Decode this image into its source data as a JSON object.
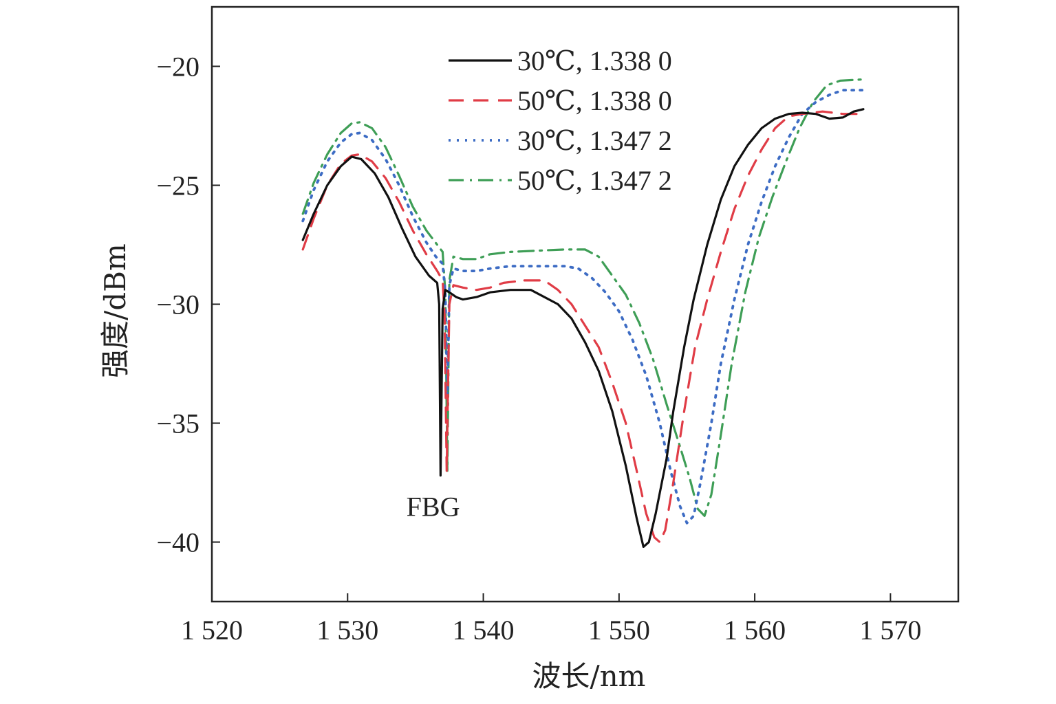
{
  "chart_data": {
    "type": "line",
    "xlabel": "波长/nm",
    "ylabel": "强度/dBm",
    "xlim": [
      1520,
      1575
    ],
    "ylim": [
      -42.5,
      -17.5
    ],
    "xticks": [
      1520,
      1530,
      1540,
      1550,
      1560,
      1570
    ],
    "xtick_labels": [
      "1 520",
      "1 530",
      "1 540",
      "1 550",
      "1 560",
      "1 570"
    ],
    "yticks": [
      -20,
      -25,
      -30,
      -35,
      -40
    ],
    "ytick_labels": [
      "−20",
      "−25",
      "−30",
      "−35",
      "−40"
    ],
    "grid": false,
    "legend_position": "top-center",
    "annotations": [
      {
        "text": "FBG",
        "x": 1536.3,
        "y": -38.5
      }
    ],
    "series": [
      {
        "name": "30℃, 1.338 0",
        "color": "#111111",
        "dash": "solid",
        "points": [
          [
            1526.7,
            -27.3
          ],
          [
            1527.5,
            -26.2
          ],
          [
            1528.5,
            -25.0
          ],
          [
            1529.5,
            -24.2
          ],
          [
            1530.3,
            -23.8
          ],
          [
            1531.0,
            -23.9
          ],
          [
            1532.0,
            -24.5
          ],
          [
            1533.0,
            -25.5
          ],
          [
            1534.0,
            -26.8
          ],
          [
            1535.0,
            -28.0
          ],
          [
            1536.0,
            -28.8
          ],
          [
            1536.6,
            -29.1
          ],
          [
            1536.75,
            -30.0
          ],
          [
            1536.85,
            -37.2
          ],
          [
            1537.0,
            -30.2
          ],
          [
            1537.2,
            -29.4
          ],
          [
            1537.5,
            -29.5
          ],
          [
            1538.0,
            -29.7
          ],
          [
            1538.5,
            -29.8
          ],
          [
            1539.5,
            -29.7
          ],
          [
            1540.5,
            -29.5
          ],
          [
            1542.0,
            -29.4
          ],
          [
            1543.5,
            -29.4
          ],
          [
            1544.5,
            -29.7
          ],
          [
            1545.5,
            -30.0
          ],
          [
            1546.5,
            -30.6
          ],
          [
            1547.5,
            -31.6
          ],
          [
            1548.5,
            -32.8
          ],
          [
            1549.5,
            -34.5
          ],
          [
            1550.5,
            -36.8
          ],
          [
            1551.3,
            -39.0
          ],
          [
            1551.8,
            -40.2
          ],
          [
            1552.2,
            -40.0
          ],
          [
            1552.7,
            -38.8
          ],
          [
            1553.5,
            -36.5
          ],
          [
            1554.0,
            -34.5
          ],
          [
            1554.8,
            -31.8
          ],
          [
            1555.5,
            -29.8
          ],
          [
            1556.5,
            -27.5
          ],
          [
            1557.5,
            -25.6
          ],
          [
            1558.5,
            -24.2
          ],
          [
            1559.5,
            -23.3
          ],
          [
            1560.5,
            -22.6
          ],
          [
            1561.5,
            -22.2
          ],
          [
            1562.5,
            -22.0
          ],
          [
            1563.5,
            -21.95
          ],
          [
            1564.5,
            -22.0
          ],
          [
            1565.5,
            -22.2
          ],
          [
            1566.5,
            -22.15
          ],
          [
            1567.3,
            -21.9
          ],
          [
            1568.0,
            -21.8
          ]
        ]
      },
      {
        "name": "50℃, 1.338 0",
        "color": "#e03c46",
        "dash": "dashed",
        "points": [
          [
            1526.7,
            -27.7
          ],
          [
            1527.5,
            -26.4
          ],
          [
            1528.5,
            -25.0
          ],
          [
            1529.5,
            -24.1
          ],
          [
            1530.3,
            -23.75
          ],
          [
            1530.9,
            -23.7
          ],
          [
            1531.8,
            -24.0
          ],
          [
            1532.8,
            -24.7
          ],
          [
            1533.8,
            -25.7
          ],
          [
            1534.8,
            -26.9
          ],
          [
            1535.8,
            -27.9
          ],
          [
            1536.6,
            -28.6
          ],
          [
            1537.0,
            -29.0
          ],
          [
            1537.15,
            -30.5
          ],
          [
            1537.3,
            -37.0
          ],
          [
            1537.5,
            -30.0
          ],
          [
            1537.8,
            -29.2
          ],
          [
            1538.5,
            -29.3
          ],
          [
            1539.5,
            -29.4
          ],
          [
            1540.5,
            -29.3
          ],
          [
            1541.5,
            -29.1
          ],
          [
            1543.0,
            -29.0
          ],
          [
            1544.5,
            -29.0
          ],
          [
            1545.5,
            -29.4
          ],
          [
            1546.5,
            -30.0
          ],
          [
            1547.5,
            -30.9
          ],
          [
            1548.5,
            -31.8
          ],
          [
            1549.5,
            -33.3
          ],
          [
            1550.5,
            -35.0
          ],
          [
            1551.3,
            -37.0
          ],
          [
            1552.0,
            -38.8
          ],
          [
            1552.6,
            -39.8
          ],
          [
            1553.0,
            -40.0
          ],
          [
            1553.4,
            -39.5
          ],
          [
            1554.0,
            -37.5
          ],
          [
            1554.8,
            -34.5
          ],
          [
            1555.6,
            -31.8
          ],
          [
            1556.5,
            -29.8
          ],
          [
            1557.5,
            -27.8
          ],
          [
            1558.5,
            -26.0
          ],
          [
            1559.5,
            -24.6
          ],
          [
            1560.5,
            -23.5
          ],
          [
            1561.5,
            -22.6
          ],
          [
            1562.5,
            -22.1
          ],
          [
            1563.5,
            -22.0
          ],
          [
            1565.0,
            -21.9
          ],
          [
            1566.5,
            -22.0
          ],
          [
            1567.5,
            -22.0
          ],
          [
            1568.0,
            -21.8
          ]
        ]
      },
      {
        "name": "30℃, 1.347 2",
        "color": "#3d6cc4",
        "dash": "dotted",
        "points": [
          [
            1526.7,
            -26.5
          ],
          [
            1527.5,
            -25.2
          ],
          [
            1528.5,
            -24.0
          ],
          [
            1529.5,
            -23.2
          ],
          [
            1530.3,
            -22.85
          ],
          [
            1530.9,
            -22.8
          ],
          [
            1531.8,
            -23.1
          ],
          [
            1532.8,
            -23.9
          ],
          [
            1533.8,
            -25.0
          ],
          [
            1534.8,
            -26.3
          ],
          [
            1535.8,
            -27.4
          ],
          [
            1536.5,
            -28.0
          ],
          [
            1537.0,
            -28.3
          ],
          [
            1537.2,
            -29.5
          ],
          [
            1537.35,
            -34.0
          ],
          [
            1537.5,
            -29.2
          ],
          [
            1537.8,
            -28.5
          ],
          [
            1538.5,
            -28.6
          ],
          [
            1539.5,
            -28.6
          ],
          [
            1540.5,
            -28.5
          ],
          [
            1542.0,
            -28.4
          ],
          [
            1544.0,
            -28.4
          ],
          [
            1546.0,
            -28.4
          ],
          [
            1547.0,
            -28.5
          ],
          [
            1548.0,
            -28.9
          ],
          [
            1549.0,
            -29.5
          ],
          [
            1550.0,
            -30.3
          ],
          [
            1551.0,
            -31.5
          ],
          [
            1552.0,
            -33.0
          ],
          [
            1553.0,
            -35.0
          ],
          [
            1553.8,
            -37.0
          ],
          [
            1554.5,
            -38.5
          ],
          [
            1555.0,
            -39.2
          ],
          [
            1555.5,
            -38.9
          ],
          [
            1556.0,
            -37.5
          ],
          [
            1556.8,
            -35.0
          ],
          [
            1557.5,
            -32.5
          ],
          [
            1558.5,
            -29.8
          ],
          [
            1559.5,
            -27.5
          ],
          [
            1560.5,
            -25.7
          ],
          [
            1561.5,
            -24.2
          ],
          [
            1562.5,
            -23.0
          ],
          [
            1563.5,
            -22.0
          ],
          [
            1564.5,
            -21.5
          ],
          [
            1565.5,
            -21.2
          ],
          [
            1566.5,
            -21.0
          ],
          [
            1568.0,
            -21.0
          ]
        ]
      },
      {
        "name": "50℃, 1.347 2",
        "color": "#3e9e56",
        "dash": "dashdot",
        "points": [
          [
            1526.7,
            -26.2
          ],
          [
            1527.5,
            -24.9
          ],
          [
            1528.5,
            -23.7
          ],
          [
            1529.5,
            -22.8
          ],
          [
            1530.3,
            -22.4
          ],
          [
            1530.9,
            -22.35
          ],
          [
            1531.8,
            -22.6
          ],
          [
            1532.8,
            -23.4
          ],
          [
            1533.8,
            -24.6
          ],
          [
            1534.8,
            -25.9
          ],
          [
            1535.8,
            -26.9
          ],
          [
            1536.6,
            -27.5
          ],
          [
            1537.0,
            -27.8
          ],
          [
            1537.2,
            -29.5
          ],
          [
            1537.35,
            -37.0
          ],
          [
            1537.5,
            -29.0
          ],
          [
            1537.8,
            -28.0
          ],
          [
            1538.5,
            -28.1
          ],
          [
            1539.5,
            -28.1
          ],
          [
            1540.5,
            -27.9
          ],
          [
            1542.0,
            -27.8
          ],
          [
            1544.0,
            -27.75
          ],
          [
            1546.0,
            -27.7
          ],
          [
            1547.5,
            -27.7
          ],
          [
            1548.5,
            -28.0
          ],
          [
            1549.5,
            -28.8
          ],
          [
            1550.5,
            -29.6
          ],
          [
            1551.5,
            -30.8
          ],
          [
            1552.5,
            -32.3
          ],
          [
            1553.5,
            -34.2
          ],
          [
            1554.5,
            -36.0
          ],
          [
            1555.2,
            -37.3
          ],
          [
            1555.8,
            -38.6
          ],
          [
            1556.3,
            -38.9
          ],
          [
            1556.8,
            -38.0
          ],
          [
            1557.5,
            -35.5
          ],
          [
            1558.3,
            -32.5
          ],
          [
            1559.3,
            -29.5
          ],
          [
            1560.3,
            -27.2
          ],
          [
            1561.3,
            -25.5
          ],
          [
            1562.3,
            -24.0
          ],
          [
            1563.3,
            -22.6
          ],
          [
            1564.3,
            -21.5
          ],
          [
            1565.3,
            -20.8
          ],
          [
            1566.3,
            -20.6
          ],
          [
            1568.0,
            -20.55
          ]
        ]
      }
    ]
  }
}
